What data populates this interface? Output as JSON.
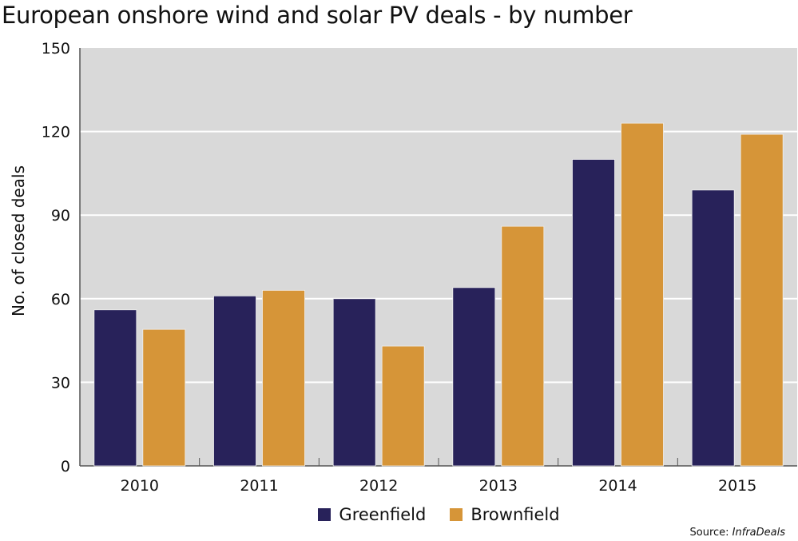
{
  "chart_data": {
    "type": "bar",
    "title": "European onshore wind and solar PV deals - by number",
    "xlabel": "",
    "ylabel": "No. of closed deals",
    "categories": [
      "2010",
      "2011",
      "2012",
      "2013",
      "2014",
      "2015"
    ],
    "series": [
      {
        "name": "Greenfield",
        "color": "#28225a",
        "values": [
          56,
          61,
          60,
          64,
          110,
          99
        ]
      },
      {
        "name": "Brownfield",
        "color": "#d69538",
        "values": [
          49,
          63,
          43,
          86,
          123,
          119
        ]
      }
    ],
    "ylim": [
      0,
      150
    ],
    "yticks": [
      0,
      30,
      60,
      90,
      120,
      150
    ],
    "grid": true,
    "legend_position": "bottom",
    "background": "#d9d9d9"
  },
  "source": {
    "label": "Source:",
    "name": "InfraDeals"
  }
}
